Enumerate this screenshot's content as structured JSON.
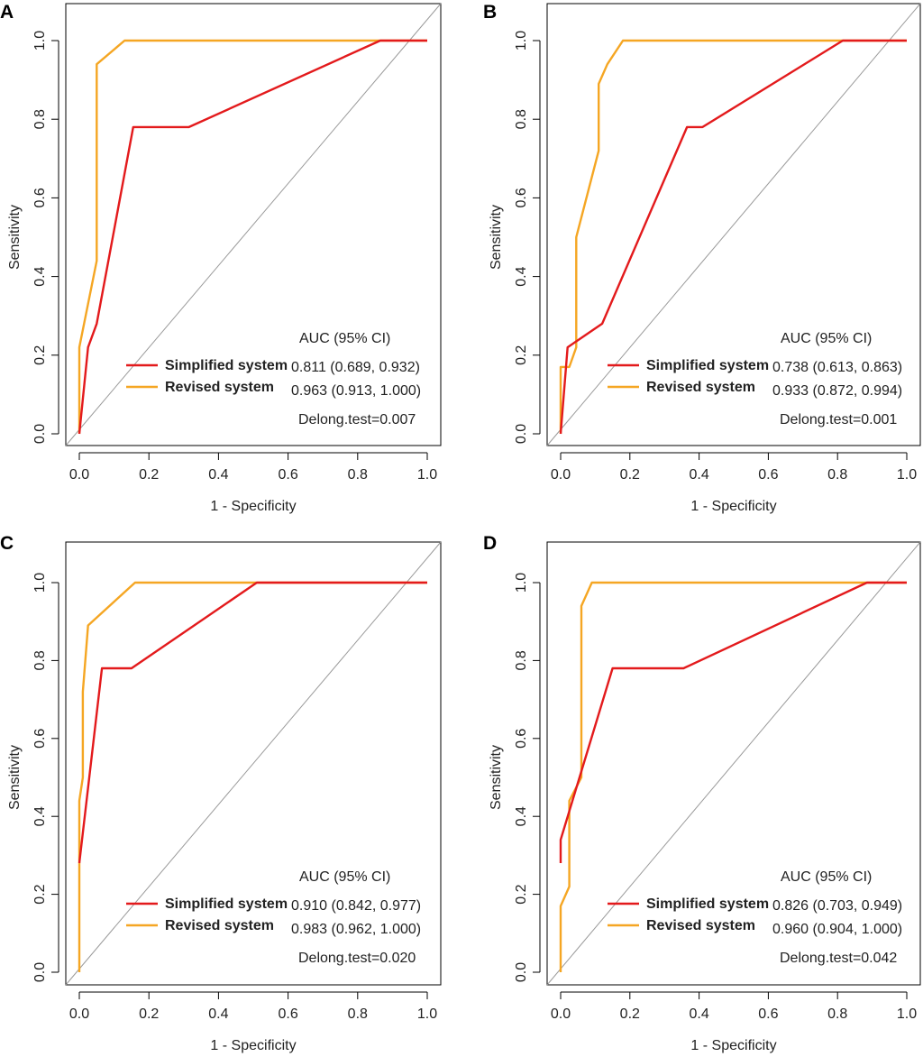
{
  "colors": {
    "simplified": "#e31a1c",
    "revised": "#f5a623",
    "diagonal": "#9a9a9a",
    "axis": "#000000"
  },
  "shared": {
    "xlabel": "1 - Specificity",
    "ylabel": "Sensitivity",
    "x_ticks": [
      "0.0",
      "0.2",
      "0.4",
      "0.6",
      "0.8",
      "1.0"
    ],
    "y_ticks": [
      "0.0",
      "0.2",
      "0.4",
      "0.6",
      "0.8",
      "1.0"
    ],
    "legend_header": "AUC (95% CI)",
    "series_names": [
      "Simplified system",
      "Revised system"
    ]
  },
  "chart_data": [
    {
      "panel": "A",
      "type": "line",
      "xlabel": "1 - Specificity",
      "ylabel": "Sensitivity",
      "xlim": [
        0,
        1
      ],
      "ylim": [
        0,
        1
      ],
      "series": [
        {
          "name": "Simplified system",
          "auc": "0.811 (0.689, 0.932)",
          "points": [
            [
              0,
              0
            ],
            [
              0.025,
              0.22
            ],
            [
              0.05,
              0.28
            ],
            [
              0.155,
              0.78
            ],
            [
              0.315,
              0.78
            ],
            [
              0.865,
              1
            ],
            [
              1,
              1
            ]
          ]
        },
        {
          "name": "Revised system",
          "auc": "0.963 (0.913, 1.000)",
          "points": [
            [
              0,
              0
            ],
            [
              0,
              0.22
            ],
            [
              0.05,
              0.44
            ],
            [
              0.05,
              0.94
            ],
            [
              0.13,
              1
            ],
            [
              1,
              1
            ]
          ]
        }
      ],
      "test": "Delong.test=0.007"
    },
    {
      "panel": "B",
      "type": "line",
      "xlabel": "1 - Specificity",
      "ylabel": "Sensitivity",
      "xlim": [
        0,
        1
      ],
      "ylim": [
        0,
        1
      ],
      "series": [
        {
          "name": "Simplified system",
          "auc": "0.738 (0.613, 0.863)",
          "points": [
            [
              0,
              0
            ],
            [
              0.02,
              0.22
            ],
            [
              0.12,
              0.28
            ],
            [
              0.365,
              0.78
            ],
            [
              0.41,
              0.78
            ],
            [
              0.815,
              1
            ],
            [
              1,
              1
            ]
          ]
        },
        {
          "name": "Revised system",
          "auc": "0.933 (0.872, 0.994)",
          "points": [
            [
              0,
              0
            ],
            [
              0,
              0.17
            ],
            [
              0.025,
              0.17
            ],
            [
              0.045,
              0.22
            ],
            [
              0.045,
              0.5
            ],
            [
              0.11,
              0.72
            ],
            [
              0.11,
              0.89
            ],
            [
              0.135,
              0.94
            ],
            [
              0.18,
              1
            ],
            [
              1,
              1
            ]
          ]
        }
      ],
      "test": "Delong.test=0.001"
    },
    {
      "panel": "C",
      "type": "line",
      "xlabel": "1 - Specificity",
      "ylabel": "Sensitivity",
      "xlim": [
        0,
        1
      ],
      "ylim": [
        0,
        1
      ],
      "series": [
        {
          "name": "Simplified system",
          "auc": "0.910 (0.842, 0.977)",
          "points": [
            [
              0,
              0.28
            ],
            [
              0.065,
              0.78
            ],
            [
              0.15,
              0.78
            ],
            [
              0.51,
              1
            ],
            [
              1,
              1
            ]
          ]
        },
        {
          "name": "Revised system",
          "auc": "0.983 (0.962, 1.000)",
          "points": [
            [
              0,
              0
            ],
            [
              0,
              0.44
            ],
            [
              0.01,
              0.5
            ],
            [
              0.01,
              0.72
            ],
            [
              0.025,
              0.89
            ],
            [
              0.16,
              1
            ],
            [
              1,
              1
            ]
          ]
        }
      ],
      "test": "Delong.test=0.020"
    },
    {
      "panel": "D",
      "type": "line",
      "xlabel": "1 - Specificity",
      "ylabel": "Sensitivity",
      "xlim": [
        0,
        1
      ],
      "ylim": [
        0,
        1
      ],
      "series": [
        {
          "name": "Simplified system",
          "auc": "0.826 (0.703, 0.949)",
          "points": [
            [
              0,
              0.28
            ],
            [
              0,
              0.34
            ],
            [
              0.15,
              0.78
            ],
            [
              0.355,
              0.78
            ],
            [
              0.885,
              1
            ],
            [
              1,
              1
            ]
          ]
        },
        {
          "name": "Revised system",
          "auc": "0.960 (0.904, 1.000)",
          "points": [
            [
              0,
              0
            ],
            [
              0,
              0.17
            ],
            [
              0.025,
              0.22
            ],
            [
              0.025,
              0.44
            ],
            [
              0.06,
              0.5
            ],
            [
              0.06,
              0.94
            ],
            [
              0.09,
              1
            ],
            [
              1,
              1
            ]
          ]
        }
      ],
      "test": "Delong.test=0.042"
    }
  ]
}
